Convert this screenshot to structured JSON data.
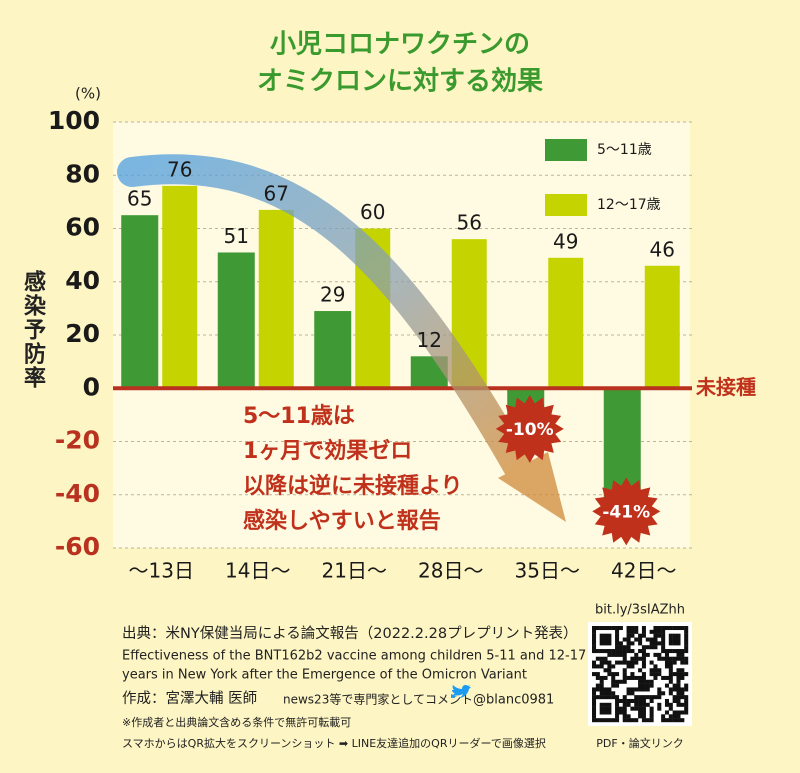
{
  "chart_data": {
    "type": "bar",
    "title": [
      "小児コロナワクチンの",
      "オミクロンに対する効果"
    ],
    "y_unit": "(%)",
    "ylabel": "感染予防率",
    "zero_label": "未接種",
    "categories": [
      "〜13日",
      "14日〜",
      "21日〜",
      "28日〜",
      "35日〜",
      "42日〜"
    ],
    "series": [
      {
        "name": "5〜11歳",
        "color": "#3f9a35",
        "values": [
          65,
          51,
          29,
          12,
          -10,
          -41
        ],
        "value_labels": [
          "65",
          "51",
          "29",
          "12",
          "-10%",
          "-41%"
        ]
      },
      {
        "name": "12〜17歳",
        "color": "#c5d300",
        "values": [
          76,
          67,
          60,
          56,
          49,
          46
        ]
      }
    ],
    "ylim": [
      -60,
      100
    ],
    "yticks": [
      100,
      80,
      60,
      40,
      20,
      0,
      -20,
      -40,
      -60
    ],
    "grid": true,
    "legend": "upper right",
    "annotation": [
      "5〜11歳は",
      "1ヶ月で効果ゼロ",
      "以降は逆に未接種より",
      "感染しやすいと報告"
    ]
  },
  "footer": {
    "source": "出典：米NY保健当局による論文報告（2022.2.28プレプリント発表）",
    "paper": [
      "Effectiveness of the BNT162b2 vaccine among children 5-11 and 12-17",
      "years in New York after the Emergence of the Omicron Variant"
    ],
    "author": "作成：宮澤大輔 医師",
    "author_note": "news23等で専門家としてコメント",
    "twitter": "@blanc0981",
    "notes": [
      "※作成者と出典論文含める条件で無許可転載可",
      "スマホからはQR拡大をスクリーンショット ➡ LINE友達追加のQRリーダーで画像選択"
    ],
    "link": "bit.ly/3sIAZhh",
    "link_caption": "PDF・論文リンク"
  }
}
